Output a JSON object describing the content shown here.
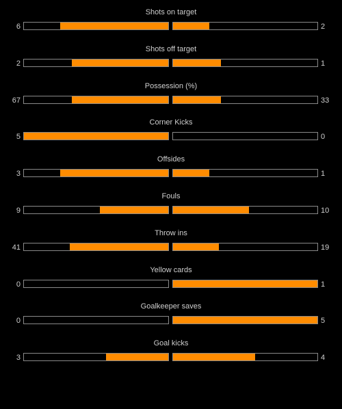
{
  "colors": {
    "fill": "#ff8c00",
    "bar_border": "#8a8a8a",
    "background": "#000000",
    "text": "#cfcfcf"
  },
  "stats": [
    {
      "label": "Shots on target",
      "home": "6",
      "away": "2",
      "home_fill": 0.75,
      "away_fill": 0.25
    },
    {
      "label": "Shots off target",
      "home": "2",
      "away": "1",
      "home_fill": 0.667,
      "away_fill": 0.333
    },
    {
      "label": "Possession (%)",
      "home": "67",
      "away": "33",
      "home_fill": 0.67,
      "away_fill": 0.33
    },
    {
      "label": "Corner Kicks",
      "home": "5",
      "away": "0",
      "home_fill": 1.0,
      "away_fill": 0.0
    },
    {
      "label": "Offsides",
      "home": "3",
      "away": "1",
      "home_fill": 0.75,
      "away_fill": 0.25
    },
    {
      "label": "Fouls",
      "home": "9",
      "away": "10",
      "home_fill": 0.474,
      "away_fill": 0.526
    },
    {
      "label": "Throw ins",
      "home": "41",
      "away": "19",
      "home_fill": 0.683,
      "away_fill": 0.317
    },
    {
      "label": "Yellow cards",
      "home": "0",
      "away": "1",
      "home_fill": 0.0,
      "away_fill": 1.0
    },
    {
      "label": "Goalkeeper saves",
      "home": "0",
      "away": "5",
      "home_fill": 0.0,
      "away_fill": 1.0
    },
    {
      "label": "Goal kicks",
      "home": "3",
      "away": "4",
      "home_fill": 0.429,
      "away_fill": 0.571
    }
  ]
}
